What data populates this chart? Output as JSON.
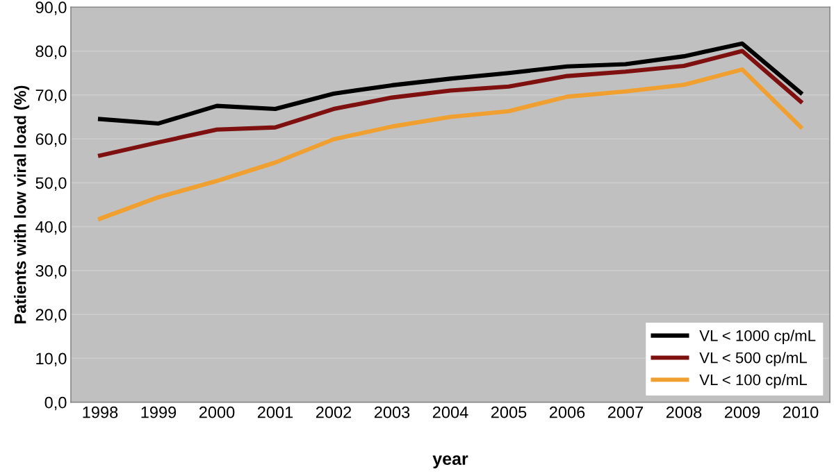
{
  "chart_data": {
    "type": "line",
    "xlabel": "year",
    "ylabel": "Patients with low viral load (%)",
    "categories": [
      "1998",
      "1999",
      "2000",
      "2001",
      "2002",
      "2003",
      "2004",
      "2005",
      "2006",
      "2007",
      "2008",
      "2009",
      "2010"
    ],
    "series": [
      {
        "name": "VL < 1000 cp/mL",
        "color": "#000000",
        "values": [
          64.5,
          63.5,
          67.5,
          66.8,
          70.3,
          72.2,
          73.7,
          75.0,
          76.5,
          77.0,
          78.8,
          81.7,
          70.5
        ]
      },
      {
        "name": "VL < 500 cp/mL",
        "color": "#7f1010",
        "values": [
          56.2,
          59.2,
          62.1,
          62.6,
          66.8,
          69.4,
          71.0,
          71.9,
          74.3,
          75.3,
          76.6,
          80.0,
          68.5
        ]
      },
      {
        "name": "VL < 100 cp/mL",
        "color": "#f0a030",
        "values": [
          41.8,
          46.7,
          50.4,
          54.6,
          59.9,
          62.8,
          65.0,
          66.3,
          69.6,
          70.8,
          72.3,
          75.8,
          62.7
        ]
      }
    ],
    "ylim": [
      0,
      90
    ],
    "yticks": [
      {
        "value": 0,
        "label": "0,0"
      },
      {
        "value": 10,
        "label": "10,0"
      },
      {
        "value": 20,
        "label": "20,0"
      },
      {
        "value": 30,
        "label": "30,0"
      },
      {
        "value": 40,
        "label": "40,0"
      },
      {
        "value": 50,
        "label": "50,0"
      },
      {
        "value": 60,
        "label": "60,0"
      },
      {
        "value": 70,
        "label": "70,0"
      },
      {
        "value": 80,
        "label": "80,0"
      },
      {
        "value": 90,
        "label": "90,0"
      }
    ],
    "grid": "y",
    "legend": "bottom right",
    "marker": "none",
    "line_style": "solid"
  }
}
